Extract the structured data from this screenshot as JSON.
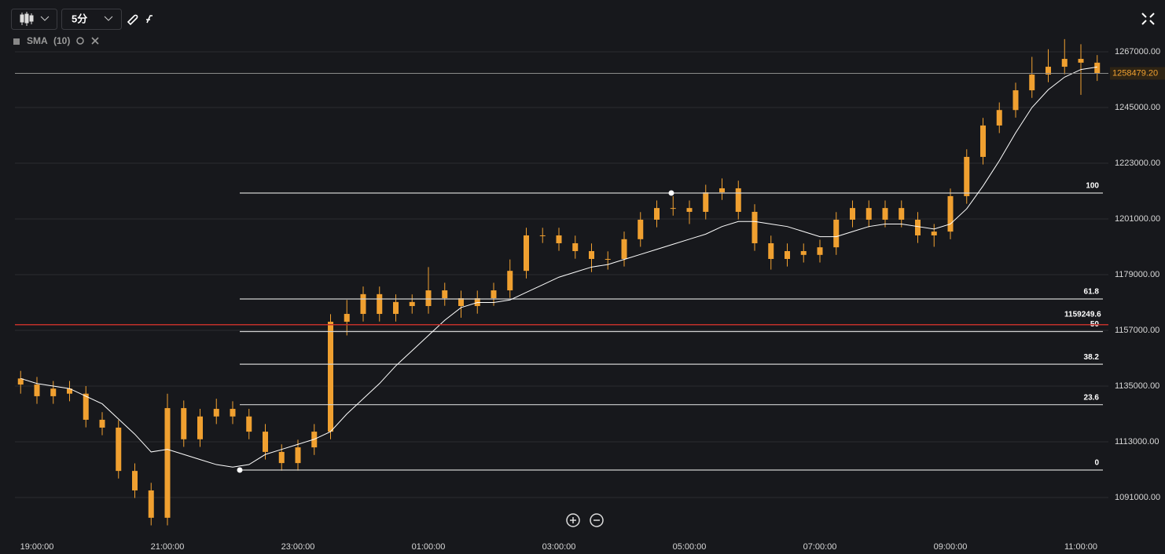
{
  "toolbar": {
    "interval": "5分"
  },
  "chart_data": {
    "type": "candlestick",
    "color": "#f0a030",
    "categories": [
      null,
      "19:00:00",
      null,
      null,
      null,
      null,
      null,
      null,
      null,
      "21:00:00",
      null,
      null,
      null,
      null,
      null,
      null,
      null,
      "23:00:00",
      null,
      null,
      null,
      null,
      null,
      null,
      null,
      "01:00:00",
      null,
      null,
      null,
      null,
      null,
      null,
      null,
      "03:00:00",
      null,
      null,
      null,
      null,
      null,
      null,
      null,
      "05:00:00",
      null,
      null,
      null,
      null,
      null,
      null,
      null,
      "07:00:00",
      null,
      null,
      null,
      null,
      null,
      null,
      null,
      "09:00:00",
      null,
      null,
      null,
      null,
      null,
      null,
      null,
      "11:00:00",
      null
    ],
    "open": [
      1138000,
      1135600,
      1131000,
      1134000,
      1132000,
      1121700,
      1118600,
      1101500,
      1093800,
      1083000,
      1126300,
      1114000,
      1123000,
      1126000,
      1123000,
      1117000,
      1109000,
      1104600,
      1110800,
      1117000,
      1160400,
      1163500,
      1171300,
      1163500,
      1168200,
      1166600,
      1172800,
      1169700,
      1166600,
      1169700,
      1172800,
      1180500,
      1194500,
      1194500,
      1191400,
      1188300,
      1185200,
      1185200,
      1193000,
      1200700,
      1205300,
      1205300,
      1203800,
      1211500,
      1213100,
      1203800,
      1191400,
      1185200,
      1188300,
      1186800,
      1189800,
      1200700,
      1205300,
      1200700,
      1205300,
      1200700,
      1194500,
      1196000,
      1210000,
      1225500,
      1237900,
      1244000,
      1251800,
      1258000,
      1261100,
      1264200,
      1262700
    ],
    "high": [
      1141000,
      1138600,
      1137000,
      1137000,
      1135000,
      1124700,
      1121600,
      1104500,
      1096800,
      1132000,
      1129300,
      1126000,
      1130000,
      1129000,
      1126000,
      1120000,
      1112000,
      1113800,
      1120000,
      1163400,
      1169000,
      1174300,
      1174300,
      1171200,
      1171200,
      1182000,
      1175800,
      1172700,
      1172700,
      1175800,
      1185000,
      1197500,
      1197500,
      1197500,
      1194400,
      1191300,
      1188200,
      1196000,
      1203700,
      1208300,
      1210000,
      1208300,
      1214500,
      1217000,
      1216100,
      1206800,
      1194400,
      1191300,
      1191300,
      1192800,
      1203700,
      1208300,
      1208300,
      1208300,
      1208300,
      1203700,
      1199000,
      1213000,
      1228500,
      1240900,
      1247000,
      1254800,
      1265000,
      1268000,
      1272000,
      1270000,
      1265700
    ],
    "low": [
      1132000,
      1128000,
      1128000,
      1129000,
      1118700,
      1115600,
      1098500,
      1090800,
      1080000,
      1080000,
      1111000,
      1111000,
      1120000,
      1120000,
      1114000,
      1106000,
      1101600,
      1101600,
      1107800,
      1114000,
      1155000,
      1160500,
      1160500,
      1160500,
      1163600,
      1163600,
      1166700,
      1162000,
      1163600,
      1166700,
      1169800,
      1177500,
      1191500,
      1188400,
      1185300,
      1180000,
      1181000,
      1182200,
      1190000,
      1197700,
      1202300,
      1199000,
      1200800,
      1208500,
      1200800,
      1188400,
      1181000,
      1182200,
      1183800,
      1183800,
      1186800,
      1197700,
      1197700,
      1197700,
      1197700,
      1191500,
      1190000,
      1193000,
      1207000,
      1222500,
      1234900,
      1241000,
      1248800,
      1255000,
      1258100,
      1250000,
      1255500
    ],
    "close": [
      1135600,
      1131000,
      1134000,
      1132000,
      1121700,
      1118600,
      1101500,
      1093800,
      1083000,
      1126300,
      1114000,
      1123000,
      1126000,
      1123000,
      1117000,
      1109000,
      1104600,
      1110800,
      1117000,
      1160400,
      1163500,
      1171300,
      1163500,
      1168200,
      1166600,
      1172800,
      1169700,
      1166600,
      1169700,
      1172800,
      1180500,
      1194500,
      1194500,
      1191400,
      1188300,
      1185200,
      1185200,
      1193000,
      1200700,
      1205300,
      1205300,
      1203800,
      1211500,
      1213100,
      1203800,
      1191400,
      1185200,
      1188300,
      1186800,
      1189800,
      1200700,
      1205300,
      1200700,
      1205300,
      1200700,
      1194500,
      1196000,
      1210000,
      1225500,
      1237900,
      1244000,
      1251800,
      1258000,
      1261100,
      1264200,
      1262700,
      1258500
    ],
    "sma": {
      "name": "SMA",
      "period": "(10)",
      "color": "#ffffff",
      "values": [
        1138000,
        1136000,
        1135000,
        1134000,
        1131000,
        1128000,
        1122000,
        1116000,
        1109000,
        1110000,
        1108000,
        1106000,
        1104000,
        1103000,
        1104000,
        1108000,
        1110000,
        1112000,
        1114000,
        1117000,
        1124000,
        1130000,
        1136000,
        1143000,
        1149000,
        1155000,
        1161000,
        1166000,
        1168000,
        1168000,
        1169000,
        1172000,
        1175000,
        1178000,
        1180000,
        1182000,
        1183000,
        1185000,
        1187000,
        1189000,
        1191000,
        1193000,
        1195000,
        1198000,
        1200000,
        1200000,
        1199000,
        1198000,
        1196000,
        1194000,
        1194000,
        1196000,
        1198000,
        1199000,
        1199000,
        1198000,
        1197000,
        1199000,
        1205000,
        1214000,
        1224000,
        1235000,
        1245000,
        1252000,
        1257000,
        1260000,
        1261000
      ]
    },
    "ylim": [
      1075200,
      1287450
    ],
    "yticks": [
      {
        "value": 1091000,
        "label": "1091000.00"
      },
      {
        "value": 1113000,
        "label": "1113000.00"
      },
      {
        "value": 1135000,
        "label": "1135000.00"
      },
      {
        "value": 1157000,
        "label": "1157000.00"
      },
      {
        "value": 1179000,
        "label": "1179000.00"
      },
      {
        "value": 1201000,
        "label": "1201000.00"
      },
      {
        "value": 1223000,
        "label": "1223000.00"
      },
      {
        "value": 1245000,
        "label": "1245000.00"
      },
      {
        "value": 1267000,
        "label": "1267000.00"
      }
    ],
    "grid": true,
    "last_price": {
      "value": 1258479.2,
      "label": "1258479.20"
    },
    "price_line": {
      "value": 1159249.6,
      "label": "1159249.6",
      "color": "#c0302a"
    },
    "fib_levels": [
      {
        "value": 1211225,
        "label": "100"
      },
      {
        "value": 1169394,
        "label": "61.8"
      },
      {
        "value": 1156535,
        "label": "50"
      },
      {
        "value": 1143628,
        "label": "38.2"
      },
      {
        "value": 1127659,
        "label": "23.6"
      },
      {
        "value": 1101845,
        "label": "0"
      }
    ]
  }
}
